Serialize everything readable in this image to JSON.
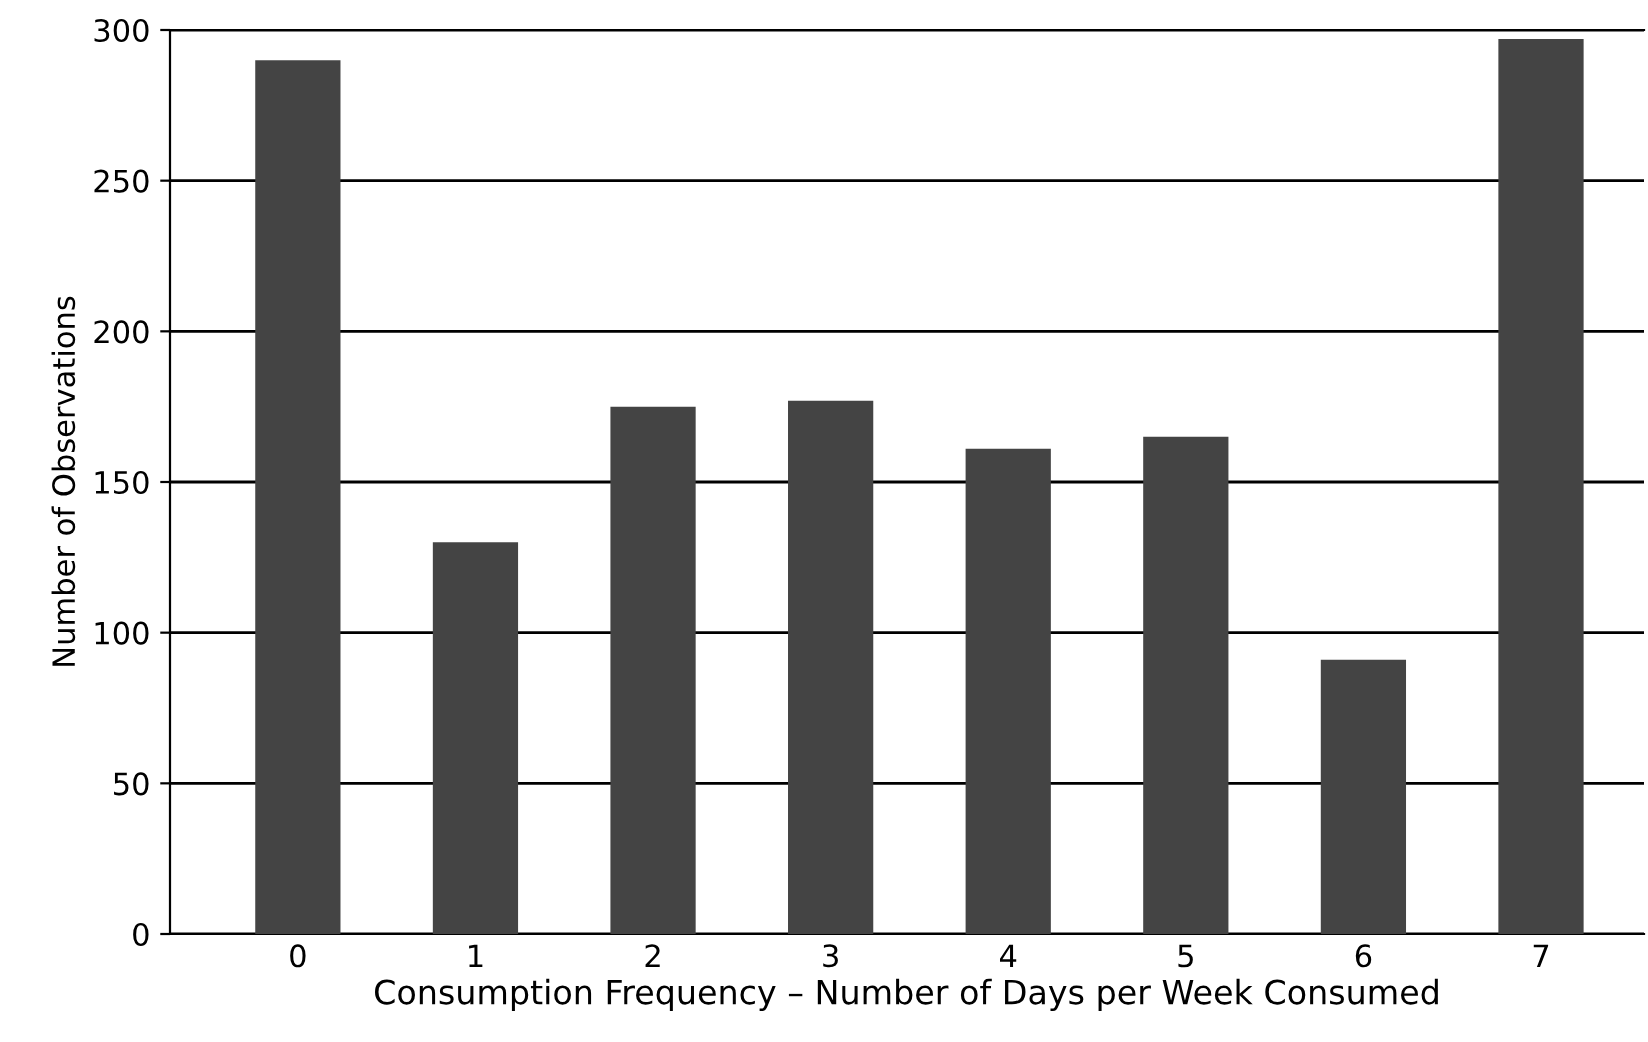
{
  "chart_data": {
    "type": "bar",
    "xlabel": "Consumption Frequency – Number of Days per Week Consumed",
    "ylabel": "Number of Observations",
    "categories": [
      "0",
      "1",
      "2",
      "3",
      "4",
      "5",
      "6",
      "7"
    ],
    "values": [
      290,
      130,
      175,
      177,
      161,
      165,
      91,
      297
    ],
    "color": "#444444",
    "ylim": [
      0,
      300
    ],
    "yticks": [
      0,
      50,
      100,
      150,
      200,
      250,
      300
    ],
    "grid": "y"
  }
}
